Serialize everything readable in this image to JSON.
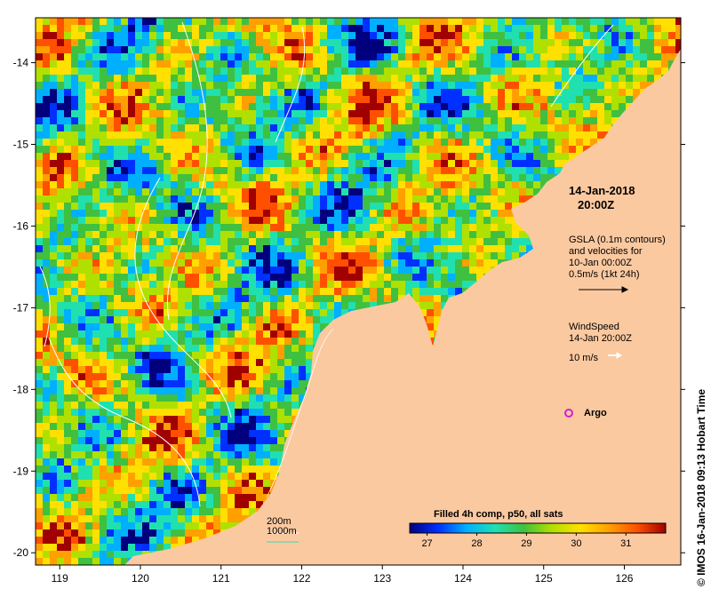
{
  "map": {
    "x_ticks": [
      "119",
      "120",
      "121",
      "122",
      "123",
      "124",
      "125",
      "126"
    ],
    "y_ticks": [
      "-14",
      "-15",
      "-16",
      "-17",
      "-18",
      "-19",
      "-20"
    ],
    "x_range": [
      118.7,
      126.7
    ],
    "y_range": [
      -20.15,
      -13.45
    ],
    "colors": {
      "land": "#fbc9a0",
      "frame": "#000000"
    }
  },
  "annotations": {
    "date": "14-Jan-2018",
    "time": "20:00Z",
    "gsla_lines": [
      "GSLA (0.1m contours)",
      "and velocities for",
      "10-Jan 00:00Z",
      "0.5m/s (1kt 24h)"
    ],
    "wind_lines": [
      "WindSpeed",
      "14-Jan 20:00Z"
    ],
    "wind_scale": "10 m/s",
    "argo": "Argo",
    "argo_color": "#d020d0",
    "depth_200": "200m",
    "depth_1000": "1000m",
    "depth_200_color": "#ffffff",
    "depth_1000_color": "#30e0b0"
  },
  "colorbar": {
    "title": "Filled 4h comp, p50, all sats",
    "ticks": [
      "27",
      "28",
      "29",
      "30",
      "31"
    ],
    "stops": [
      "#00007f",
      "#0030ff",
      "#00b0ff",
      "#20e0b0",
      "#40c040",
      "#b0e000",
      "#ffe000",
      "#ffa000",
      "#ff5000",
      "#a00000"
    ]
  },
  "credit": "IMOS 16-Jan-2018 09:13 Hobart Time"
}
